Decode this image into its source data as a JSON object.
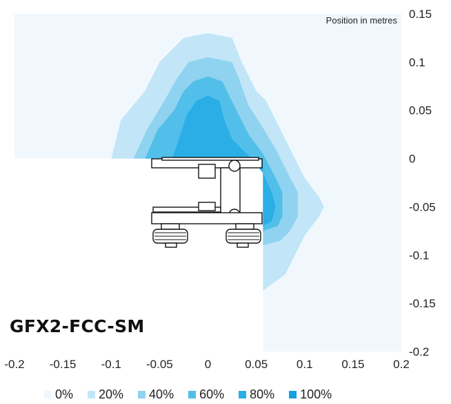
{
  "chart_data": {
    "type": "heatmap",
    "title": "",
    "position_label": "Position in metres",
    "model_label": "GFX2-FCC-SM",
    "x_ticks": [
      "-0.2",
      "-0.15",
      "-0.1",
      "-0.05",
      "0",
      "0.05",
      "0.1",
      "0.15",
      "0.2"
    ],
    "y_ticks": [
      "0.15",
      "0.1",
      "0.05",
      "0",
      "-0.05",
      "-0.1",
      "-0.15",
      "-0.2"
    ],
    "xlim": [
      -0.2,
      0.2
    ],
    "ylim": [
      -0.2,
      0.15
    ],
    "legend": [
      {
        "label": "0%",
        "color": "#f1f8fd"
      },
      {
        "label": "20%",
        "color": "#c2e6f7"
      },
      {
        "label": "40%",
        "color": "#8fd3f0"
      },
      {
        "label": "60%",
        "color": "#52bfea"
      },
      {
        "label": "80%",
        "color": "#2aaee5"
      },
      {
        "label": "100%",
        "color": "#139fe0"
      }
    ],
    "contours": [
      {
        "level": "0%",
        "points": [
          [
            -0.2,
            0.15
          ],
          [
            0.2,
            0.15
          ],
          [
            0.2,
            -0.2
          ],
          [
            0.057,
            -0.2
          ],
          [
            0.057,
            0
          ],
          [
            -0.2,
            0
          ]
        ]
      },
      {
        "level": "20%",
        "points": [
          [
            -0.1,
            0
          ],
          [
            -0.09,
            0.04
          ],
          [
            -0.065,
            0.07
          ],
          [
            -0.05,
            0.1
          ],
          [
            -0.025,
            0.125
          ],
          [
            0,
            0.13
          ],
          [
            0.025,
            0.125
          ],
          [
            0.035,
            0.1
          ],
          [
            0.05,
            0.07
          ],
          [
            0.06,
            0.06
          ],
          [
            0.07,
            0.04
          ],
          [
            0.09,
            0
          ],
          [
            0.1,
            -0.02
          ],
          [
            0.115,
            -0.04
          ],
          [
            0.12,
            -0.05
          ],
          [
            0.115,
            -0.06
          ],
          [
            0.1,
            -0.08
          ],
          [
            0.09,
            -0.1
          ],
          [
            0.08,
            -0.12
          ],
          [
            0.057,
            -0.137
          ],
          [
            0.057,
            0
          ]
        ]
      },
      {
        "level": "40%",
        "points": [
          [
            -0.077,
            0
          ],
          [
            -0.063,
            0.03
          ],
          [
            -0.045,
            0.06
          ],
          [
            -0.032,
            0.083
          ],
          [
            -0.02,
            0.1
          ],
          [
            0,
            0.105
          ],
          [
            0.025,
            0.1
          ],
          [
            0.032,
            0.083
          ],
          [
            0.042,
            0.055
          ],
          [
            0.055,
            0.035
          ],
          [
            0.07,
            0.01
          ],
          [
            0.085,
            -0.02
          ],
          [
            0.093,
            -0.035
          ],
          [
            0.093,
            -0.06
          ],
          [
            0.085,
            -0.075
          ],
          [
            0.075,
            -0.085
          ],
          [
            0.057,
            -0.09
          ],
          [
            0.057,
            0
          ]
        ]
      },
      {
        "level": "60%",
        "points": [
          [
            -0.065,
            0
          ],
          [
            -0.052,
            0.03
          ],
          [
            -0.035,
            0.05
          ],
          [
            -0.025,
            0.07
          ],
          [
            -0.015,
            0.08
          ],
          [
            0,
            0.085
          ],
          [
            0.015,
            0.08
          ],
          [
            0.022,
            0.065
          ],
          [
            0.032,
            0.045
          ],
          [
            0.042,
            0.025
          ],
          [
            0.057,
            0.005
          ],
          [
            0.07,
            -0.02
          ],
          [
            0.077,
            -0.035
          ],
          [
            0.077,
            -0.06
          ],
          [
            0.072,
            -0.07
          ],
          [
            0.057,
            -0.075
          ],
          [
            0.057,
            0
          ]
        ]
      },
      {
        "level": "80%",
        "points": [
          [
            -0.037,
            0
          ],
          [
            -0.03,
            0.02
          ],
          [
            -0.022,
            0.045
          ],
          [
            -0.012,
            0.06
          ],
          [
            0,
            0.065
          ],
          [
            0.012,
            0.06
          ],
          [
            0.017,
            0.04
          ],
          [
            0.025,
            0.02
          ],
          [
            0.035,
            0.01
          ],
          [
            0.045,
            0
          ],
          [
            0.057,
            -0.015
          ],
          [
            0.066,
            -0.035
          ],
          [
            0.07,
            -0.05
          ],
          [
            0.066,
            -0.065
          ],
          [
            0.057,
            -0.07
          ],
          [
            0.057,
            0
          ]
        ]
      }
    ]
  }
}
